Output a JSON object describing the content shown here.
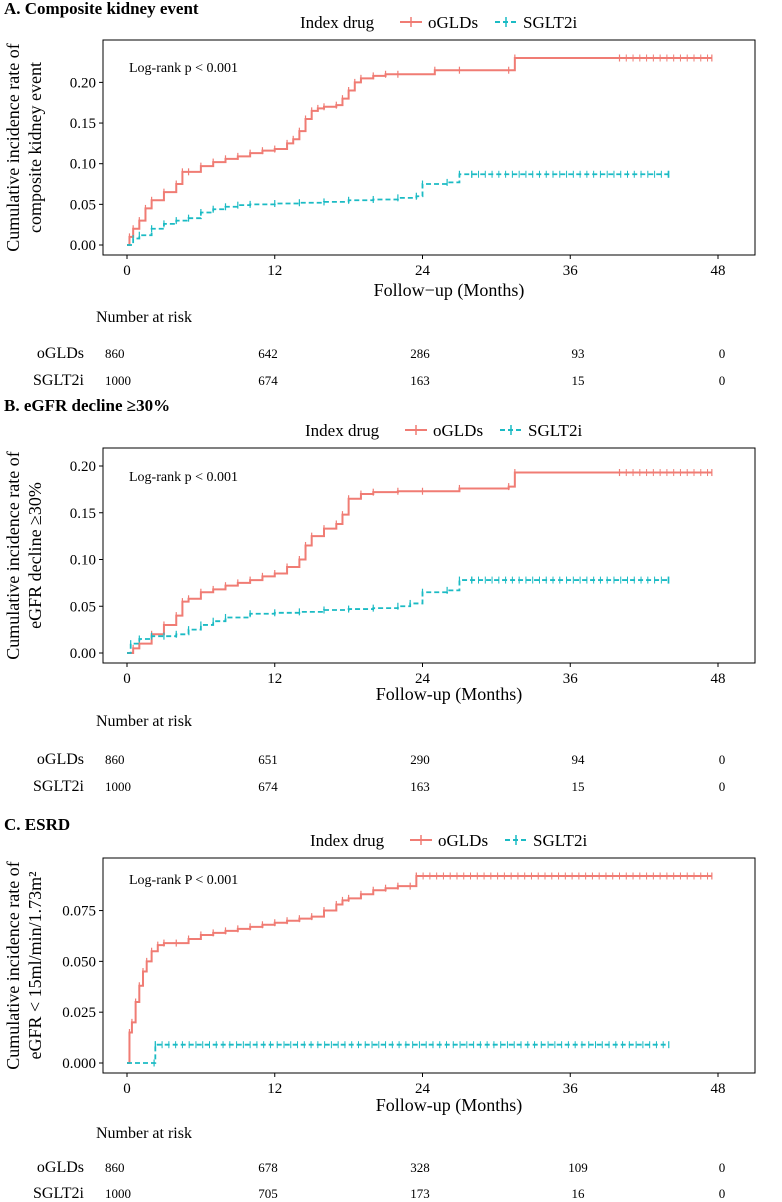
{
  "colors": {
    "ogld": "#F07C74",
    "sglt": "#1BBBC4",
    "axis": "#000000"
  },
  "legend": {
    "title": "Index drug",
    "ogld_label": "oGLDs",
    "sglt_label": "SGLT2i"
  },
  "risk_header": "Number at risk",
  "chart_data": [
    {
      "type": "line",
      "title": "A. Composite kidney event",
      "xlabel": "Follow−up (Months)",
      "ylabel_lines": [
        "Cumulative incidence rate of",
        "composite kidney event"
      ],
      "logrank": "Log-rank p  < 0.001",
      "xlim": [
        0,
        48
      ],
      "ylim": [
        0,
        0.23
      ],
      "x_ticks": [
        "0",
        "12",
        "24",
        "36",
        "48"
      ],
      "y_ticks": [
        "0.00",
        "0.05",
        "0.10",
        "0.15",
        "0.20"
      ],
      "y_tick_values": [
        0,
        0.05,
        0.1,
        0.15,
        0.2
      ],
      "series": [
        {
          "name": "oGLDs",
          "x": [
            0,
            0.2,
            0.5,
            1,
            1.5,
            2,
            3,
            4,
            4.5,
            5,
            6,
            7,
            8,
            9,
            10,
            11,
            12,
            13,
            13.5,
            14,
            14.5,
            15,
            15.5,
            16,
            17,
            17.5,
            18,
            18.5,
            19,
            20,
            21,
            22,
            25,
            27,
            31,
            31.5,
            40,
            47.5
          ],
          "y": [
            0,
            0.01,
            0.02,
            0.03,
            0.045,
            0.055,
            0.065,
            0.075,
            0.09,
            0.09,
            0.097,
            0.102,
            0.106,
            0.109,
            0.113,
            0.116,
            0.118,
            0.125,
            0.13,
            0.14,
            0.155,
            0.165,
            0.168,
            0.17,
            0.172,
            0.18,
            0.19,
            0.2,
            0.205,
            0.208,
            0.21,
            0.21,
            0.215,
            0.215,
            0.215,
            0.23,
            0.23,
            0.23
          ]
        },
        {
          "name": "SGLT2i",
          "x": [
            0,
            0.5,
            1,
            2,
            3,
            4,
            5,
            6,
            7,
            8,
            9,
            10,
            12,
            14,
            16,
            18,
            20,
            22,
            23.5,
            24,
            26,
            27,
            28,
            44
          ],
          "y": [
            0,
            0.008,
            0.012,
            0.02,
            0.026,
            0.03,
            0.033,
            0.04,
            0.044,
            0.047,
            0.049,
            0.05,
            0.051,
            0.052,
            0.053,
            0.055,
            0.056,
            0.058,
            0.06,
            0.075,
            0.077,
            0.087,
            0.087,
            0.087
          ]
        }
      ],
      "risk_times": [
        "0",
        "12",
        "24",
        "36",
        "48"
      ],
      "risk_rows": [
        {
          "label": "oGLDs",
          "values": [
            "860",
            "642",
            "286",
            "93",
            "0"
          ]
        },
        {
          "label": "SGLT2i",
          "values": [
            "1000",
            "674",
            "163",
            "15",
            "0"
          ]
        }
      ]
    },
    {
      "type": "line",
      "title": "B. eGFR decline ≥30%",
      "xlabel": "Follow-up (Months)",
      "ylabel_lines": [
        "Cumulative incidence rate of",
        "eGFR decline ≥30%"
      ],
      "logrank": "Log-rank p < 0.001",
      "xlim": [
        0,
        48
      ],
      "ylim": [
        0,
        0.2
      ],
      "x_ticks": [
        "0",
        "12",
        "24",
        "36",
        "48"
      ],
      "y_ticks": [
        "0.00",
        "0.05",
        "0.10",
        "0.15",
        "0.20"
      ],
      "y_tick_values": [
        0,
        0.05,
        0.1,
        0.15,
        0.2
      ],
      "series": [
        {
          "name": "oGLDs",
          "x": [
            0,
            0.5,
            1,
            2,
            3,
            4,
            4.5,
            5,
            6,
            7,
            8,
            9,
            10,
            11,
            12,
            13,
            14,
            14.5,
            15,
            16,
            17,
            17.5,
            18,
            19,
            20,
            22,
            24,
            27,
            31,
            31.5,
            40,
            47.5
          ],
          "y": [
            0,
            0.005,
            0.01,
            0.02,
            0.03,
            0.04,
            0.055,
            0.058,
            0.065,
            0.068,
            0.072,
            0.075,
            0.078,
            0.082,
            0.085,
            0.092,
            0.1,
            0.115,
            0.125,
            0.133,
            0.138,
            0.148,
            0.165,
            0.17,
            0.172,
            0.173,
            0.173,
            0.176,
            0.178,
            0.193,
            0.193,
            0.193
          ]
        },
        {
          "name": "SGLT2i",
          "x": [
            0,
            0.3,
            1,
            2,
            3,
            4,
            5,
            6,
            7,
            8,
            10,
            12,
            14,
            16,
            18,
            20,
            22,
            23,
            24,
            26,
            27,
            28,
            44
          ],
          "y": [
            0,
            0.01,
            0.015,
            0.018,
            0.018,
            0.02,
            0.025,
            0.03,
            0.034,
            0.038,
            0.042,
            0.043,
            0.044,
            0.046,
            0.047,
            0.048,
            0.05,
            0.053,
            0.065,
            0.067,
            0.078,
            0.078,
            0.078
          ]
        }
      ],
      "risk_times": [
        "0",
        "12",
        "24",
        "36",
        "48"
      ],
      "risk_rows": [
        {
          "label": "oGLDs",
          "values": [
            "860",
            "651",
            "290",
            "94",
            "0"
          ]
        },
        {
          "label": "SGLT2i",
          "values": [
            "1000",
            "674",
            "163",
            "15",
            "0"
          ]
        }
      ]
    },
    {
      "type": "line",
      "title": "C. ESRD",
      "xlabel": "Follow-up (Months)",
      "ylabel_lines": [
        "Cumulative incidence rate of",
        "eGFR < 15ml/min/1.73m²"
      ],
      "logrank": "Log-rank P < 0.001",
      "xlim": [
        0,
        48
      ],
      "ylim": [
        0,
        0.092
      ],
      "x_ticks": [
        "0",
        "12",
        "24",
        "36",
        "48"
      ],
      "y_ticks": [
        "0.000",
        "0.025",
        "0.050",
        "0.075"
      ],
      "y_tick_values": [
        0,
        0.025,
        0.05,
        0.075
      ],
      "series": [
        {
          "name": "oGLDs",
          "x": [
            0,
            0.2,
            0.4,
            0.7,
            1,
            1.3,
            1.6,
            2,
            2.5,
            3,
            4,
            5,
            6,
            7,
            8,
            9,
            10,
            11,
            12,
            13,
            14,
            15,
            16,
            17,
            17.5,
            18,
            19,
            20,
            21,
            22,
            23,
            23.5,
            47.5
          ],
          "y": [
            0,
            0.015,
            0.02,
            0.03,
            0.038,
            0.045,
            0.05,
            0.055,
            0.058,
            0.059,
            0.059,
            0.061,
            0.063,
            0.064,
            0.065,
            0.066,
            0.067,
            0.068,
            0.069,
            0.07,
            0.071,
            0.072,
            0.075,
            0.078,
            0.08,
            0.081,
            0.083,
            0.085,
            0.086,
            0.087,
            0.087,
            0.092,
            0.092
          ]
        },
        {
          "name": "SGLT2i",
          "x": [
            0,
            2.2,
            2.3,
            44
          ],
          "y": [
            0,
            0,
            0.009,
            0.009
          ]
        }
      ],
      "risk_times": [
        "0",
        "12",
        "24",
        "36",
        "48"
      ],
      "risk_rows": [
        {
          "label": "oGLDs",
          "values": [
            "860",
            "678",
            "328",
            "109",
            "0"
          ]
        },
        {
          "label": "SGLT2i",
          "values": [
            "1000",
            "705",
            "173",
            "16",
            "0"
          ]
        }
      ]
    }
  ]
}
